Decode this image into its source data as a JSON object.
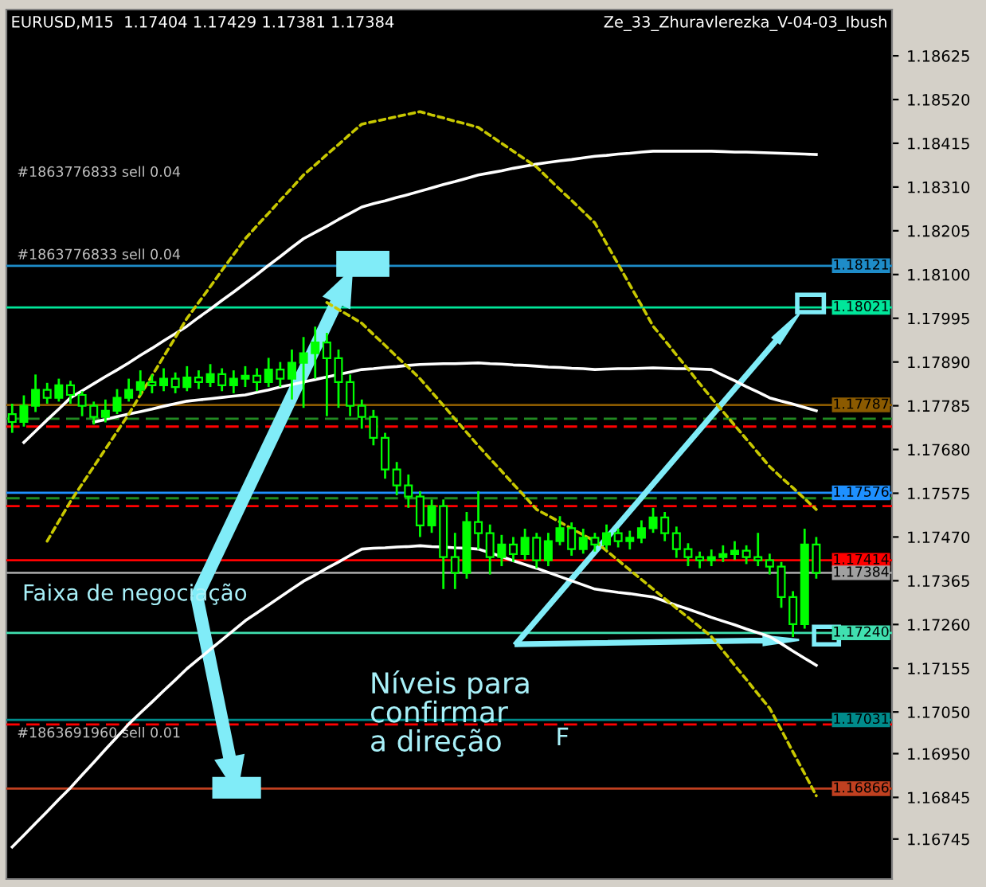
{
  "chart_data": {
    "type": "candlestick",
    "title": "EURUSD,M15  1.17404 1.17429 1.17381 1.17384",
    "subtitle": "Ze_33_Zhuravlerezka_V-04-03_Ibush",
    "categories": [
      null,
      null,
      null,
      null,
      null,
      null,
      null,
      null,
      null,
      null,
      null,
      null,
      null,
      null,
      null,
      null,
      null,
      null,
      null,
      null,
      null,
      null,
      null,
      null,
      null,
      null,
      null,
      null,
      null,
      null,
      null,
      null,
      null,
      null,
      null,
      null,
      null,
      null,
      null,
      null,
      null,
      null,
      null,
      null,
      null,
      null,
      null,
      null,
      null,
      null,
      null,
      null,
      null,
      null,
      null,
      null,
      null,
      null,
      null,
      null,
      null,
      null,
      null,
      null,
      null,
      null,
      null,
      null,
      null,
      null,
      null,
      null,
      null,
      null,
      null,
      null
    ],
    "color": "#00ff00",
    "ohlc": [
      [
        1.17765,
        1.1779,
        1.1772,
        1.17746
      ],
      [
        1.17746,
        1.1781,
        1.17735,
        1.17785
      ],
      [
        1.17785,
        1.1786,
        1.1777,
        1.17823
      ],
      [
        1.17823,
        1.1784,
        1.1779,
        1.17804
      ],
      [
        1.17804,
        1.1785,
        1.17795,
        1.17834
      ],
      [
        1.17834,
        1.17845,
        1.1779,
        1.17811
      ],
      [
        1.17811,
        1.1782,
        1.1776,
        1.17785
      ],
      [
        1.17785,
        1.17795,
        1.1774,
        1.17758
      ],
      [
        1.17758,
        1.178,
        1.17745,
        1.17773
      ],
      [
        1.17773,
        1.17825,
        1.17765,
        1.17804
      ],
      [
        1.17804,
        1.1785,
        1.17795,
        1.17823
      ],
      [
        1.17823,
        1.1787,
        1.1781,
        1.17842
      ],
      [
        1.17842,
        1.1786,
        1.17815,
        1.17834
      ],
      [
        1.17834,
        1.17875,
        1.1782,
        1.1785
      ],
      [
        1.1785,
        1.17865,
        1.17815,
        1.1783
      ],
      [
        1.1783,
        1.1788,
        1.1782,
        1.17853
      ],
      [
        1.17853,
        1.1787,
        1.17825,
        1.17842
      ],
      [
        1.17842,
        1.17885,
        1.1783,
        1.17861
      ],
      [
        1.17861,
        1.17875,
        1.1782,
        1.17834
      ],
      [
        1.17834,
        1.1787,
        1.17815,
        1.1785
      ],
      [
        1.1785,
        1.1788,
        1.1783,
        1.17857
      ],
      [
        1.17857,
        1.17875,
        1.1782,
        1.17842
      ],
      [
        1.17842,
        1.179,
        1.1783,
        1.17872
      ],
      [
        1.17872,
        1.1789,
        1.1783,
        1.1785
      ],
      [
        1.1785,
        1.1792,
        1.178,
        1.17888
      ],
      [
        1.17888,
        1.1795,
        1.1778,
        1.17911
      ],
      [
        1.17911,
        1.17975,
        1.1785,
        1.17937
      ],
      [
        1.17937,
        1.1796,
        1.1776,
        1.17899
      ],
      [
        1.17899,
        1.1792,
        1.1778,
        1.17842
      ],
      [
        1.17842,
        1.1786,
        1.1776,
        1.17785
      ],
      [
        1.17785,
        1.178,
        1.1773,
        1.17758
      ],
      [
        1.17758,
        1.17775,
        1.1769,
        1.17708
      ],
      [
        1.17708,
        1.1772,
        1.1761,
        1.17632
      ],
      [
        1.17632,
        1.1765,
        1.1757,
        1.17594
      ],
      [
        1.17594,
        1.1762,
        1.1754,
        1.17567
      ],
      [
        1.17567,
        1.1758,
        1.1747,
        1.17498
      ],
      [
        1.17498,
        1.1756,
        1.1748,
        1.17544
      ],
      [
        1.17544,
        1.1756,
        1.17345,
        1.17422
      ],
      [
        1.17422,
        1.1748,
        1.17345,
        1.17384
      ],
      [
        1.17384,
        1.1753,
        1.1737,
        1.17506
      ],
      [
        1.17506,
        1.1758,
        1.1744,
        1.17479
      ],
      [
        1.17479,
        1.175,
        1.1738,
        1.17422
      ],
      [
        1.17422,
        1.17475,
        1.174,
        1.17452
      ],
      [
        1.17452,
        1.1747,
        1.1741,
        1.17429
      ],
      [
        1.17429,
        1.1749,
        1.17415,
        1.17468
      ],
      [
        1.17468,
        1.1748,
        1.17395,
        1.17414
      ],
      [
        1.17414,
        1.1748,
        1.174,
        1.1746
      ],
      [
        1.1746,
        1.1752,
        1.1745,
        1.17491
      ],
      [
        1.17491,
        1.17505,
        1.17425,
        1.17441
      ],
      [
        1.17441,
        1.1749,
        1.1743,
        1.17468
      ],
      [
        1.17468,
        1.1748,
        1.17435,
        1.17452
      ],
      [
        1.17452,
        1.175,
        1.1744,
        1.17479
      ],
      [
        1.17479,
        1.1749,
        1.17445,
        1.1746
      ],
      [
        1.1746,
        1.17485,
        1.1744,
        1.17468
      ],
      [
        1.17468,
        1.1751,
        1.17455,
        1.17491
      ],
      [
        1.17491,
        1.1754,
        1.1748,
        1.17517
      ],
      [
        1.17517,
        1.1753,
        1.1746,
        1.17479
      ],
      [
        1.17479,
        1.17495,
        1.1742,
        1.17441
      ],
      [
        1.17441,
        1.17455,
        1.174,
        1.17422
      ],
      [
        1.17422,
        1.17435,
        1.17395,
        1.17414
      ],
      [
        1.17414,
        1.1744,
        1.174,
        1.17422
      ],
      [
        1.17422,
        1.1745,
        1.1741,
        1.17429
      ],
      [
        1.17429,
        1.1746,
        1.17415,
        1.17437
      ],
      [
        1.17437,
        1.1745,
        1.17405,
        1.17422
      ],
      [
        1.17422,
        1.1748,
        1.174,
        1.17414
      ],
      [
        1.17414,
        1.1743,
        1.1738,
        1.17399
      ],
      [
        1.17399,
        1.1741,
        1.173,
        1.17326
      ],
      [
        1.17326,
        1.1734,
        1.1723,
        1.17261
      ],
      [
        1.17261,
        1.1749,
        1.1725,
        1.17452
      ],
      [
        1.17452,
        1.1747,
        1.1737,
        1.17384
      ],
      null,
      null,
      null,
      null,
      null,
      null
    ],
    "series": [
      {
        "type": "line",
        "color": "#ffffff",
        "line_style": "solid",
        "values": [
          null,
          1.17697,
          1.17724,
          1.17751,
          1.17777,
          1.17804,
          1.17821,
          1.17838,
          1.17855,
          1.17871,
          1.17888,
          1.17906,
          1.17923,
          1.17941,
          1.17958,
          1.17976,
          1.17997,
          1.18017,
          1.18038,
          1.18058,
          1.18079,
          1.181,
          1.18122,
          1.18143,
          1.18165,
          1.18186,
          1.18201,
          1.18216,
          1.18232,
          1.18247,
          1.18262,
          1.1827,
          1.18277,
          1.18285,
          1.18292,
          1.183,
          1.18308,
          1.18316,
          1.18323,
          1.18331,
          1.18339,
          1.18344,
          1.18349,
          1.18355,
          1.1836,
          1.18365,
          1.18369,
          1.18373,
          1.18376,
          1.1838,
          1.18384,
          1.18386,
          1.18389,
          1.18391,
          1.18394,
          1.18396,
          1.18396,
          1.18396,
          1.18396,
          1.18396,
          1.18396,
          1.18395,
          1.18394,
          1.18394,
          1.18393,
          1.18392,
          1.18391,
          1.1839,
          1.18389,
          1.18388,
          null,
          null,
          null,
          null,
          null,
          null
        ]
      },
      {
        "type": "line",
        "color": "#ffffff",
        "line_style": "solid",
        "values": [
          null,
          null,
          null,
          null,
          null,
          null,
          null,
          1.17746,
          1.17752,
          1.17759,
          1.17765,
          1.17771,
          1.17777,
          1.17784,
          1.1779,
          1.17796,
          1.17799,
          1.17802,
          1.17805,
          1.17808,
          1.17811,
          1.17817,
          1.17823,
          1.1783,
          1.17836,
          1.17842,
          1.17848,
          1.17854,
          1.1786,
          1.17866,
          1.17872,
          1.17874,
          1.17877,
          1.17879,
          1.17882,
          1.17884,
          1.17885,
          1.17886,
          1.17886,
          1.17887,
          1.17888,
          1.17886,
          1.17885,
          1.17883,
          1.17882,
          1.1788,
          1.17878,
          1.17877,
          1.17875,
          1.17874,
          1.17872,
          1.17873,
          1.17874,
          1.17874,
          1.17875,
          1.17876,
          1.17875,
          1.17874,
          1.17874,
          1.17873,
          1.17872,
          1.17858,
          1.17845,
          1.17831,
          1.17818,
          1.17804,
          1.17796,
          1.17789,
          1.17781,
          1.17773,
          null,
          null,
          null,
          null,
          null,
          null
        ]
      },
      {
        "type": "line",
        "color": "#ffffff",
        "line_style": "solid",
        "values": [
          1.16726,
          1.16754,
          1.16783,
          1.16811,
          1.1684,
          1.16868,
          1.16899,
          1.16929,
          1.1696,
          1.1699,
          1.17021,
          1.17048,
          1.17074,
          1.17101,
          1.17127,
          1.17154,
          1.17177,
          1.172,
          1.17223,
          1.17246,
          1.17269,
          1.17288,
          1.17307,
          1.17326,
          1.17345,
          1.17364,
          1.17379,
          1.17395,
          1.1741,
          1.17426,
          1.17441,
          1.17443,
          1.17444,
          1.17446,
          1.17447,
          1.17449,
          1.17447,
          1.17446,
          1.17444,
          1.17443,
          1.17441,
          1.17432,
          1.17423,
          1.17413,
          1.17404,
          1.17395,
          1.17385,
          1.17375,
          1.17365,
          1.17355,
          1.17345,
          1.17341,
          1.17337,
          1.17334,
          1.1733,
          1.17326,
          1.17316,
          1.17306,
          1.17297,
          1.17287,
          1.17277,
          1.17268,
          1.17259,
          1.17249,
          1.1724,
          1.17231,
          1.17214,
          1.17196,
          1.17179,
          1.17162,
          null,
          null,
          null,
          null,
          null,
          null
        ]
      },
      {
        "type": "line",
        "color": "#c8c800",
        "line_style": "dotted",
        "values": [
          null,
          null,
          null,
          1.1746,
          1.17508,
          1.17555,
          1.17597,
          1.17639,
          1.17681,
          1.17723,
          1.17765,
          1.17811,
          1.17857,
          1.17903,
          1.17949,
          1.17995,
          1.18033,
          1.18071,
          1.1811,
          1.18148,
          1.18186,
          1.18217,
          1.18247,
          1.18278,
          1.18308,
          1.18339,
          1.18363,
          1.18388,
          1.18412,
          1.18437,
          1.18461,
          1.18467,
          1.18473,
          1.18479,
          1.18485,
          1.18491,
          1.18483,
          1.18476,
          1.18468,
          1.18461,
          1.18453,
          1.18434,
          1.18415,
          1.18396,
          1.18377,
          1.18358,
          1.18331,
          1.18304,
          1.18278,
          1.18251,
          1.18224,
          1.18174,
          1.18125,
          1.18075,
          1.18026,
          1.17976,
          1.17942,
          1.17907,
          1.17873,
          1.17838,
          1.17804,
          1.17771,
          1.17738,
          1.17705,
          1.17672,
          1.17639,
          1.17613,
          1.17588,
          1.17562,
          1.17536,
          null,
          null,
          null,
          null,
          null,
          null
        ]
      },
      {
        "type": "line",
        "color": "#c8c800",
        "line_style": "dotted",
        "values": [
          null,
          null,
          null,
          null,
          null,
          null,
          null,
          null,
          null,
          null,
          null,
          null,
          null,
          null,
          null,
          null,
          null,
          null,
          null,
          null,
          null,
          null,
          null,
          null,
          null,
          null,
          null,
          1.18033,
          1.18016,
          1.18,
          1.17983,
          1.17956,
          1.1793,
          1.17903,
          1.17877,
          1.1785,
          1.17818,
          1.17786,
          1.17753,
          1.17721,
          1.17689,
          1.17658,
          1.17628,
          1.17597,
          1.17567,
          1.17536,
          1.17521,
          1.17506,
          1.1749,
          1.17475,
          1.1746,
          1.17437,
          1.17414,
          1.17391,
          1.17368,
          1.17345,
          1.17322,
          1.17299,
          1.17277,
          1.17254,
          1.17231,
          1.17197,
          1.17162,
          1.17128,
          1.17093,
          1.17059,
          1.17007,
          1.16954,
          1.16902,
          1.16849,
          null,
          null,
          null,
          null,
          null,
          null
        ]
      }
    ],
    "ylim": [
      1.16649,
      1.18736
    ],
    "yticks": [
      {
        "value": 1.18625,
        "label": "1.18625"
      },
      {
        "value": 1.1852,
        "label": "1.18520"
      },
      {
        "value": 1.18415,
        "label": "1.18415"
      },
      {
        "value": 1.1831,
        "label": "1.18310"
      },
      {
        "value": 1.18205,
        "label": "1.18205"
      },
      {
        "value": 1.181,
        "label": "1.18100"
      },
      {
        "value": 1.17995,
        "label": "1.17995"
      },
      {
        "value": 1.1789,
        "label": "1.17890"
      },
      {
        "value": 1.17785,
        "label": "1.17785"
      },
      {
        "value": 1.1768,
        "label": "1.17680"
      },
      {
        "value": 1.17575,
        "label": "1.17575"
      },
      {
        "value": 1.1747,
        "label": "1.17470"
      },
      {
        "value": 1.17365,
        "label": "1.17365"
      },
      {
        "value": 1.1726,
        "label": "1.17260"
      },
      {
        "value": 1.17155,
        "label": "1.17155"
      },
      {
        "value": 1.1705,
        "label": "1.17050"
      },
      {
        "value": 1.1695,
        "label": "1.16950"
      },
      {
        "value": 1.16845,
        "label": "1.16845"
      },
      {
        "value": 1.16745,
        "label": "1.16745"
      }
    ],
    "tick_labels": "y",
    "grid": false,
    "legend": false,
    "ref_lines": [
      {
        "axis": "y",
        "value": 1.18121,
        "label": "1.18121",
        "color": "#1e8cc8"
      },
      {
        "axis": "y",
        "value": 1.18021,
        "label": "1.18021",
        "color": "#00e69a"
      },
      {
        "axis": "y",
        "value": 1.17787,
        "label": "1.17787",
        "color": "#8b5a00"
      },
      {
        "axis": "y",
        "value": 1.17576,
        "label": "1.17576",
        "color": "#1e90ff"
      },
      {
        "axis": "y",
        "value": 1.17414,
        "label": "1.17414",
        "color": "#ff0000"
      },
      {
        "axis": "y",
        "value": 1.17384,
        "label": "1.17384",
        "color": "#a0a0a0"
      },
      {
        "axis": "y",
        "value": 1.1724,
        "label": "1.17240",
        "color": "#40e0b0"
      },
      {
        "axis": "y",
        "value": 1.17031,
        "label": "1.17031",
        "color": "#008b8b"
      },
      {
        "axis": "y",
        "value": 1.16866,
        "label": "1.16866",
        "color": "#c04020"
      },
      {
        "axis": "y",
        "value": 1.17754,
        "color": "#228b22",
        "line_style": "dashed"
      },
      {
        "axis": "y",
        "value": 1.17735,
        "color": "#ff0000",
        "line_style": "dashed"
      },
      {
        "axis": "y",
        "value": 1.17563,
        "color": "#228b22",
        "line_style": "dashed"
      },
      {
        "axis": "y",
        "value": 1.17544,
        "color": "#ff0000",
        "line_style": "dashed"
      },
      {
        "axis": "y",
        "value": 1.1702,
        "color": "#ff0000",
        "line_style": "dashed"
      }
    ],
    "annotations": [
      "#1863776833 sell 0.04",
      "#1863776833 sell 0.04",
      "#1863691960 sell 0.01",
      "Faixa de negociação",
      "Níveis para\nconfirmar\na direção",
      "F"
    ]
  }
}
